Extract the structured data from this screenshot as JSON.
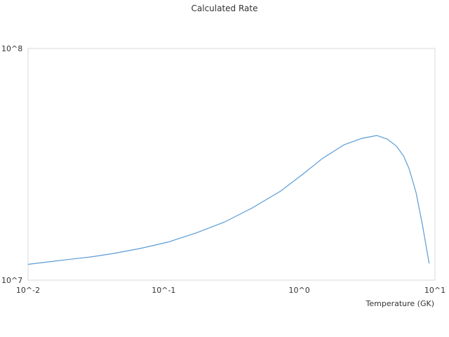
{
  "chart_data": {
    "type": "line",
    "title": "Calculated Rate",
    "x_label": "Temperature (GK)",
    "x": [
      0.01,
      0.0143,
      0.0204,
      0.0292,
      0.0417,
      0.0673,
      0.108,
      0.174,
      0.28,
      0.45,
      0.725,
      1.04,
      1.49,
      2.14,
      2.88,
      3.73,
      4.45,
      5.19,
      5.86,
      6.44,
      7.25,
      8.07,
      9.06
    ],
    "series": [
      {
        "color": "#5b9bd5",
        "values": [
          11700000,
          12000000,
          12300000,
          12600000,
          13000000,
          13700000,
          14600000,
          16000000,
          17800000,
          20500000,
          24200000,
          28400000,
          33600000,
          38400000,
          40900000,
          42100000,
          40600000,
          37900000,
          34400000,
          30300000,
          23900000,
          17400000,
          11800000
        ]
      }
    ],
    "xlim": [
      0.01,
      10
    ],
    "ylim": [
      10000000,
      100000000
    ],
    "xscale": "log",
    "yscale": "log",
    "xticks": [
      {
        "value": 0.01,
        "label": "10^-2"
      },
      {
        "value": 0.1,
        "label": "10^-1"
      },
      {
        "value": 1,
        "label": "10^0"
      },
      {
        "value": 10,
        "label": "10^1"
      }
    ],
    "yticks": [
      {
        "value": 10000000,
        "label": "10^7"
      },
      {
        "value": 100000000,
        "label": "10^8"
      }
    ],
    "grid": false
  }
}
